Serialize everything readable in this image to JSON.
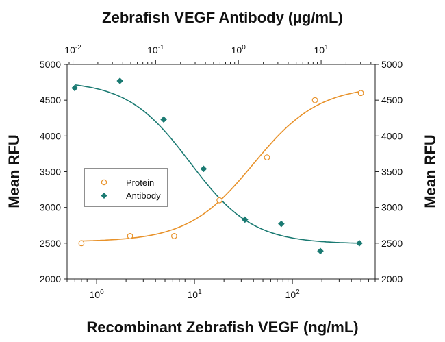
{
  "chart_data": {
    "type": "scatter",
    "title": "Zebrafish VEGF Antibody (µg/mL)",
    "xlabel": "Recombinant Zebrafish VEGF (ng/mL)",
    "ylabel": "Mean RFU",
    "y2label": "Mean RFU",
    "x_scale": "log",
    "x2_scale": "log",
    "xlim": [
      0.5,
      700
    ],
    "x2lim": [
      0.0085,
      45
    ],
    "ylim": [
      2000,
      5000
    ],
    "x_ticks": [
      {
        "base": "10",
        "exp": "0",
        "value": 1
      },
      {
        "base": "10",
        "exp": "1",
        "value": 10
      },
      {
        "base": "10",
        "exp": "2",
        "value": 100
      }
    ],
    "x2_ticks": [
      {
        "base": "10",
        "exp": "-2",
        "value": 0.01
      },
      {
        "base": "10",
        "exp": "-1",
        "value": 0.1
      },
      {
        "base": "10",
        "exp": "0",
        "value": 1
      },
      {
        "base": "10",
        "exp": "1",
        "value": 10
      }
    ],
    "y_ticks": [
      "2000",
      "2500",
      "3000",
      "3500",
      "4000",
      "4500",
      "5000"
    ],
    "legend": {
      "position": "center-left",
      "entries": [
        "Protein",
        "Antibody"
      ]
    },
    "colors": {
      "protein": "#e8922a",
      "antibody": "#1a7a72"
    },
    "series": [
      {
        "name": "Protein",
        "axis": "bottom",
        "marker": "open-circle",
        "x": [
          0.7,
          2.2,
          6.2,
          18,
          55,
          170,
          500
        ],
        "y": [
          2500,
          2600,
          2600,
          3100,
          3700,
          4500,
          4600
        ],
        "fit": {
          "bottom": 2520,
          "top": 4700,
          "ec50": 40,
          "hill": 1.3
        }
      },
      {
        "name": "Antibody",
        "axis": "top",
        "marker": "filled-diamond",
        "x": [
          0.0105,
          0.037,
          0.125,
          0.38,
          1.2,
          3.3,
          9.8,
          29
        ],
        "y": [
          4670,
          4770,
          4230,
          3540,
          2830,
          2770,
          2390,
          2500
        ],
        "fit": {
          "bottom": 2490,
          "top": 4770,
          "ec50": 0.26,
          "hill": 1.15
        }
      }
    ]
  }
}
